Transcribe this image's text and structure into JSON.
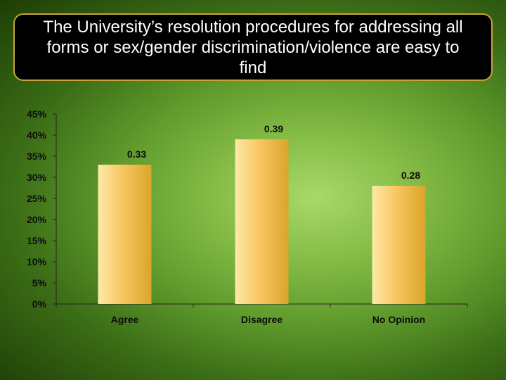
{
  "title": "The University’s resolution procedures for addressing all forms or sex/gender discrimination/violence are easy to find",
  "colors": {
    "bar_light": "#fde9a8",
    "bar_mid": "#f9c662",
    "bar_dark": "#d9a52a",
    "axis": "#222222"
  },
  "chart_data": {
    "type": "bar",
    "title": "The University’s resolution procedures for addressing all forms or sex/gender discrimination/violence are easy to find",
    "categories": [
      "Agree",
      "Disagree",
      "No Opinion"
    ],
    "values": [
      0.33,
      0.39,
      0.28
    ],
    "data_labels": [
      "0.33",
      "0.39",
      "0.28"
    ],
    "ylim": [
      0,
      0.45
    ],
    "yticks": [
      0,
      0.05,
      0.1,
      0.15,
      0.2,
      0.25,
      0.3,
      0.35,
      0.4,
      0.45
    ],
    "ytick_labels": [
      "0%",
      "5%",
      "10%",
      "15%",
      "20%",
      "25%",
      "30%",
      "35%",
      "40%",
      "45%"
    ],
    "xlabel": "",
    "ylabel": "",
    "grid": false,
    "legend": "none"
  }
}
